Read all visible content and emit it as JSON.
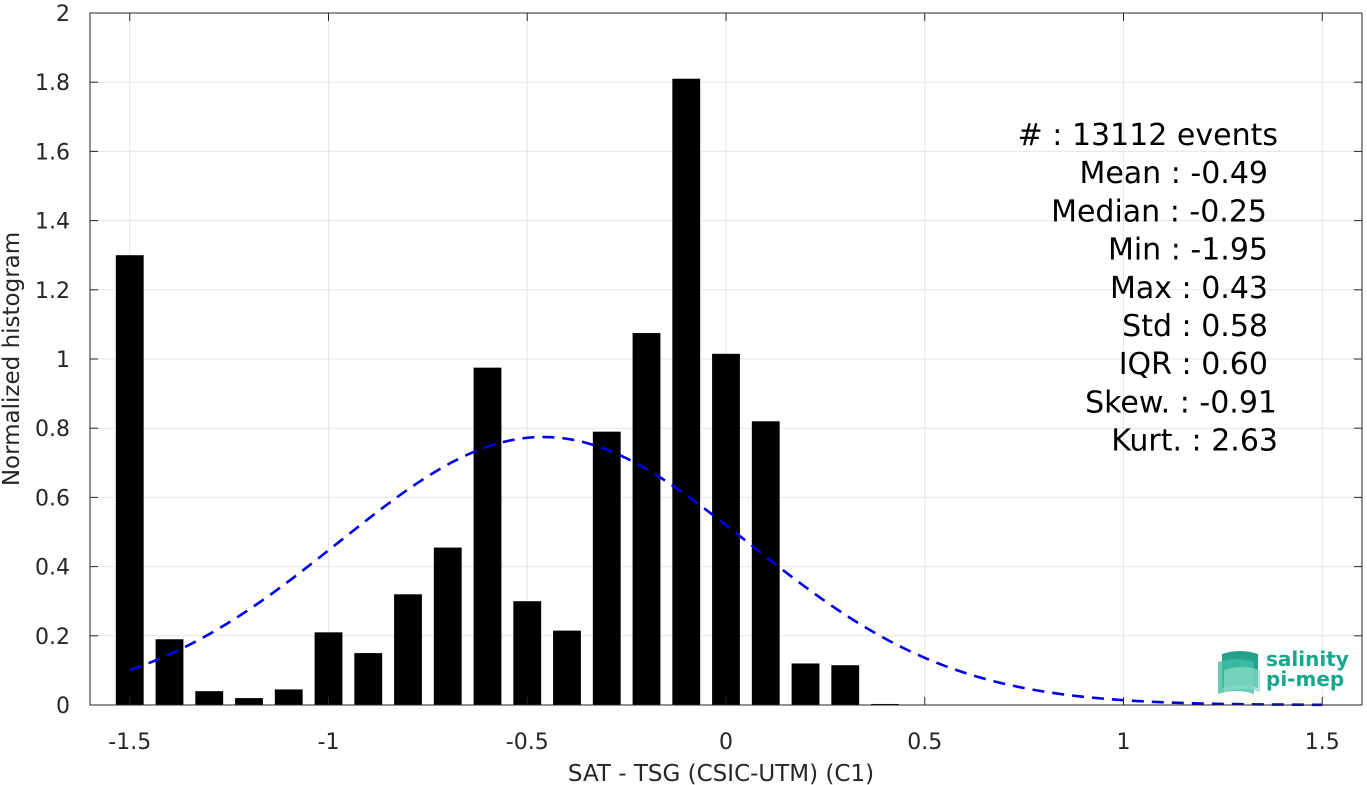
{
  "chart_data": {
    "type": "bar",
    "xlabel": "SAT - TSG (CSIC-UTM) (C1)",
    "ylabel": "Normalized histogram",
    "xlim": [
      -1.6,
      1.6
    ],
    "ylim": [
      0,
      2
    ],
    "xticks": [
      -1.5,
      -1,
      -0.5,
      0,
      0.5,
      1,
      1.5
    ],
    "xtick_labels": [
      "-1.5",
      "-1",
      "-0.5",
      "0",
      "0.5",
      "1",
      "1.5"
    ],
    "yticks": [
      0,
      0.2,
      0.4,
      0.6,
      0.8,
      1,
      1.2,
      1.4,
      1.6,
      1.8,
      2
    ],
    "ytick_labels": [
      "0",
      "0.2",
      "0.4",
      "0.6",
      "0.8",
      "1",
      "1.2",
      "1.4",
      "1.6",
      "1.8",
      "2"
    ],
    "grid": true,
    "bar_color": "#000000",
    "bar_width": 0.07,
    "bins": [
      -1.5,
      -1.4,
      -1.3,
      -1.2,
      -1.1,
      -1.0,
      -0.9,
      -0.8,
      -0.7,
      -0.6,
      -0.5,
      -0.4,
      -0.3,
      -0.2,
      -0.1,
      0.0,
      0.1,
      0.2,
      0.3,
      0.4
    ],
    "values": [
      1.3,
      0.19,
      0.04,
      0.02,
      0.045,
      0.21,
      0.15,
      0.32,
      0.455,
      0.975,
      0.3,
      0.215,
      0.79,
      1.075,
      1.81,
      1.015,
      0.82,
      0.12,
      0.115,
      0.003
    ],
    "fit_curve": {
      "style": "dashed",
      "color": "#0000e6",
      "mean": -0.46,
      "std": 0.515,
      "x_range": [
        -1.5,
        1.5
      ]
    },
    "stats": [
      "#  : 13112 events",
      "Mean : -0.49",
      "Median : -0.25",
      "Min : -1.95",
      "Max : 0.43",
      "Std : 0.58",
      "IQR : 0.60",
      "Skew. : -0.91",
      "Kurt. : 2.63"
    ]
  },
  "logo": {
    "line1": "salinity",
    "line2": "pi-mep"
  }
}
